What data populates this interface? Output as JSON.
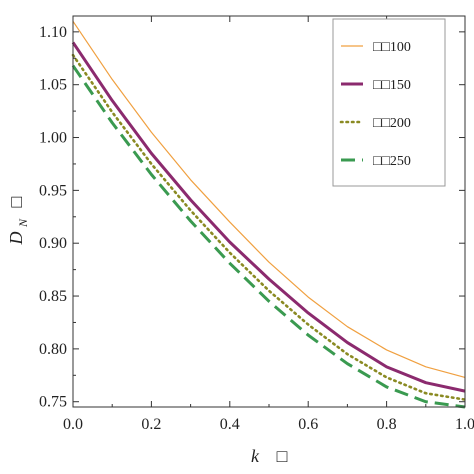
{
  "chart_data": {
    "type": "line",
    "xlabel": "k",
    "xlabel_suffix": "□",
    "ylabel_main": "D",
    "ylabel_sub": "N",
    "ylabel_suffix": "□",
    "xlim": [
      0,
      1
    ],
    "ylim": [
      0.745,
      1.115
    ],
    "xticks": [
      "0.0",
      "0.2",
      "0.4",
      "0.6",
      "0.8",
      "1.0"
    ],
    "xtick_values": [
      0,
      0.2,
      0.4,
      0.6,
      0.8,
      1.0
    ],
    "yticks": [
      "0.75",
      "0.80",
      "0.85",
      "0.90",
      "0.95",
      "1.00",
      "1.05",
      "1.10"
    ],
    "ytick_values": [
      0.75,
      0.8,
      0.85,
      0.9,
      0.95,
      1.0,
      1.05,
      1.1
    ],
    "grid": false,
    "legend_position": "top-right",
    "x": [
      0.0,
      0.1,
      0.2,
      0.3,
      0.4,
      0.5,
      0.6,
      0.7,
      0.8,
      0.9,
      1.0
    ],
    "series": [
      {
        "name": "□□100",
        "color": "#f0a040",
        "style": "solid-thin",
        "values": [
          1.11,
          1.055,
          1.005,
          0.96,
          0.92,
          0.882,
          0.849,
          0.821,
          0.799,
          0.783,
          0.773
        ]
      },
      {
        "name": "□□150",
        "color": "#8b2a6e",
        "style": "solid-thick",
        "values": [
          1.09,
          1.035,
          0.985,
          0.941,
          0.901,
          0.866,
          0.834,
          0.806,
          0.783,
          0.768,
          0.76
        ]
      },
      {
        "name": "□□200",
        "color": "#8a8a22",
        "style": "dotted",
        "values": [
          1.078,
          1.024,
          0.975,
          0.931,
          0.891,
          0.855,
          0.823,
          0.795,
          0.773,
          0.758,
          0.752
        ]
      },
      {
        "name": "□□250",
        "color": "#3a9a50",
        "style": "dashed",
        "values": [
          1.068,
          1.014,
          0.965,
          0.921,
          0.881,
          0.845,
          0.813,
          0.786,
          0.764,
          0.75,
          0.745
        ]
      }
    ]
  }
}
